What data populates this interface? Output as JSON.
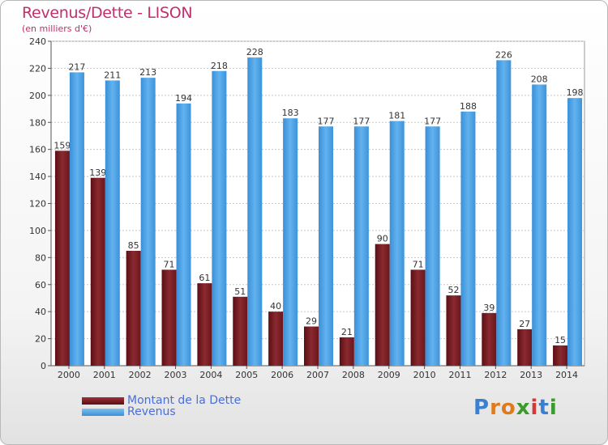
{
  "header": {
    "title": "Revenus/Dette - LISON",
    "subtitle": "(en milliers d'€)"
  },
  "legend": {
    "debt_label": "Montant de la Dette",
    "revenue_label": "Revenus"
  },
  "logo": {
    "text": "Proxiti"
  },
  "colors": {
    "debt": "#7a1f24",
    "revenue": "#4aa3e6",
    "title": "#c0306a",
    "legend_text": "#4a6ed8"
  },
  "chart_data": {
    "type": "bar",
    "title": "Revenus/Dette - LISON",
    "subtitle": "(en milliers d'€)",
    "categories": [
      "2000",
      "2001",
      "2002",
      "2003",
      "2004",
      "2005",
      "2006",
      "2007",
      "2008",
      "2009",
      "2010",
      "2011",
      "2012",
      "2013",
      "2014"
    ],
    "series": [
      {
        "name": "Montant de la Dette",
        "values": [
          159,
          139,
          85,
          71,
          61,
          51,
          40,
          29,
          21,
          90,
          71,
          52,
          39,
          27,
          15
        ]
      },
      {
        "name": "Revenus",
        "values": [
          217,
          211,
          213,
          194,
          218,
          228,
          183,
          177,
          177,
          181,
          177,
          188,
          226,
          208,
          198
        ]
      }
    ],
    "ylim": [
      0,
      240
    ],
    "yticks": [
      0,
      20,
      40,
      60,
      80,
      100,
      120,
      140,
      160,
      180,
      200,
      220,
      240
    ],
    "grid": true,
    "legend_position": "bottom-left"
  }
}
